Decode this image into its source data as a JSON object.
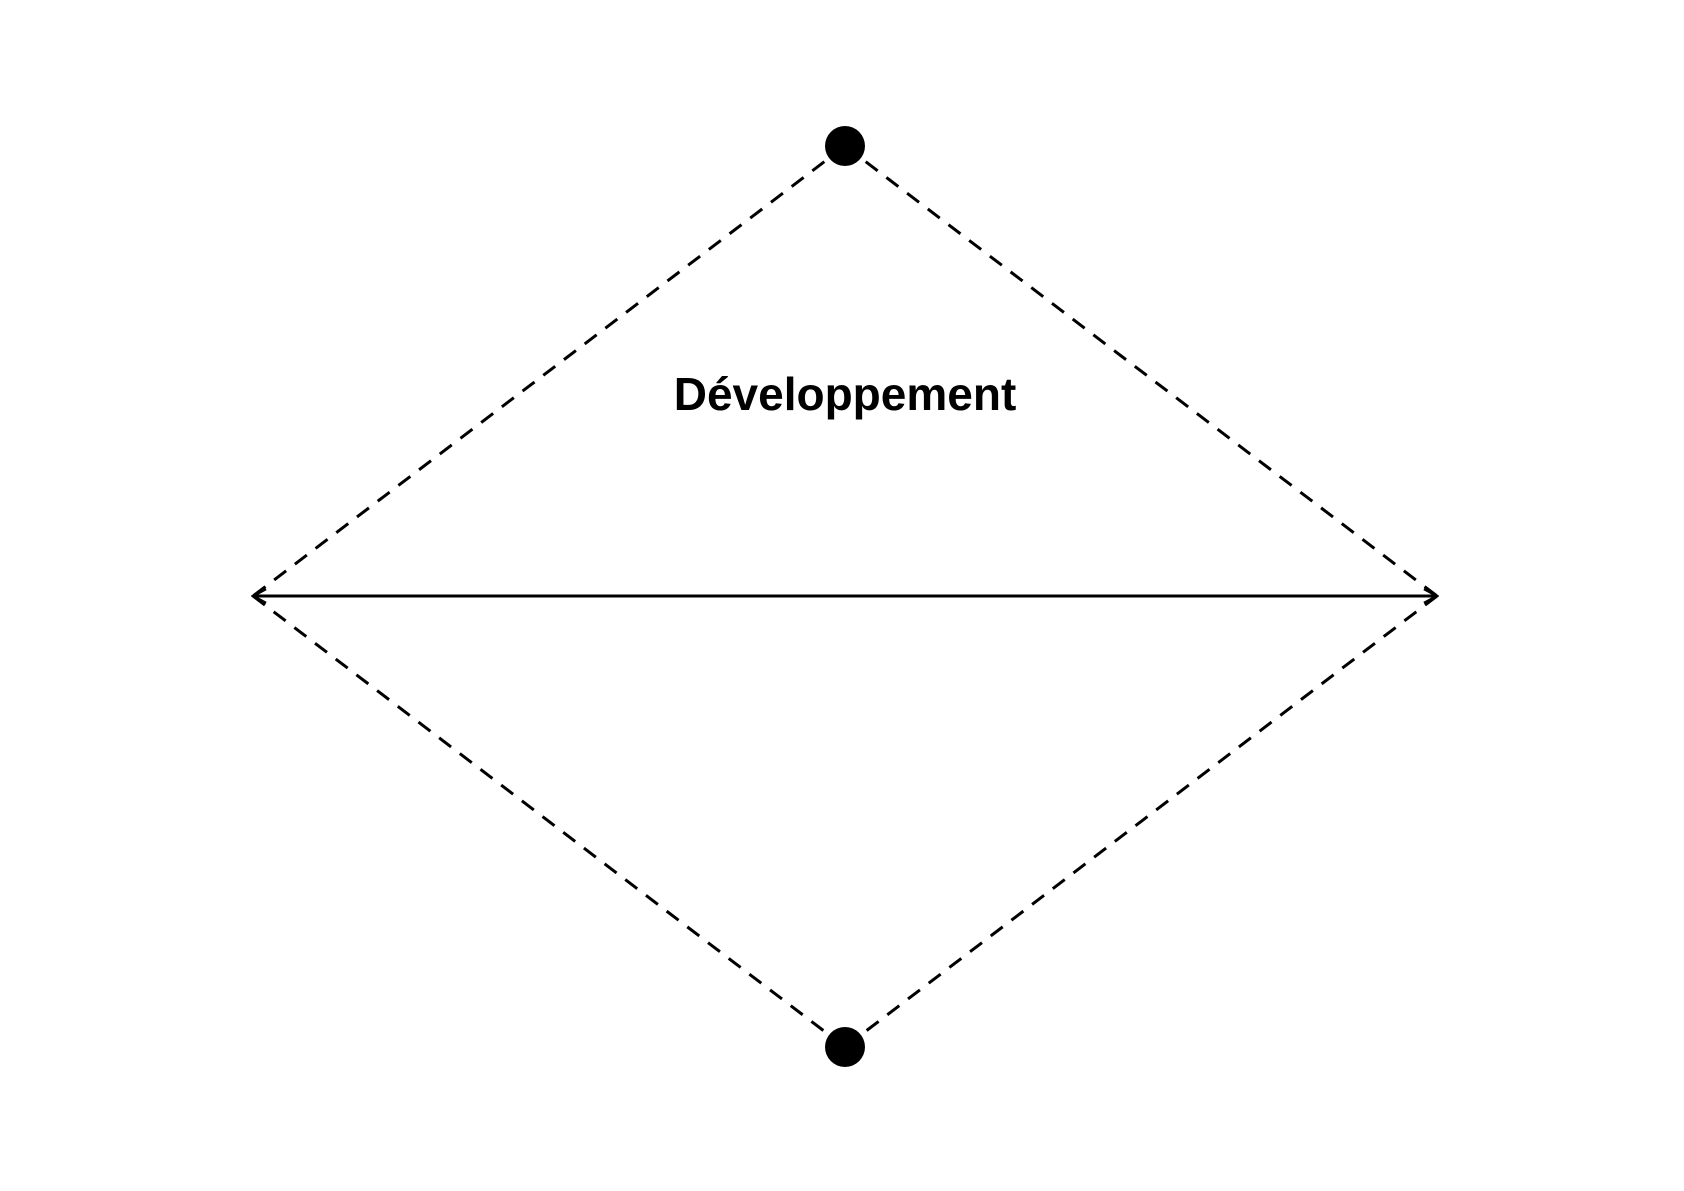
{
  "diagram": {
    "label": "Développement",
    "line_color": "#000000",
    "background": "#ffffff",
    "nodes": [
      {
        "id": "top-node",
        "shape": "filled-circle"
      },
      {
        "id": "bottom-node",
        "shape": "filled-circle"
      }
    ],
    "edges": [
      {
        "id": "edge-top-left",
        "style": "dashed"
      },
      {
        "id": "edge-top-right",
        "style": "dashed"
      },
      {
        "id": "edge-bottom-left",
        "style": "dashed"
      },
      {
        "id": "edge-bottom-right",
        "style": "dashed"
      },
      {
        "id": "horizontal-axis",
        "style": "solid",
        "arrowheads": "both"
      }
    ]
  }
}
